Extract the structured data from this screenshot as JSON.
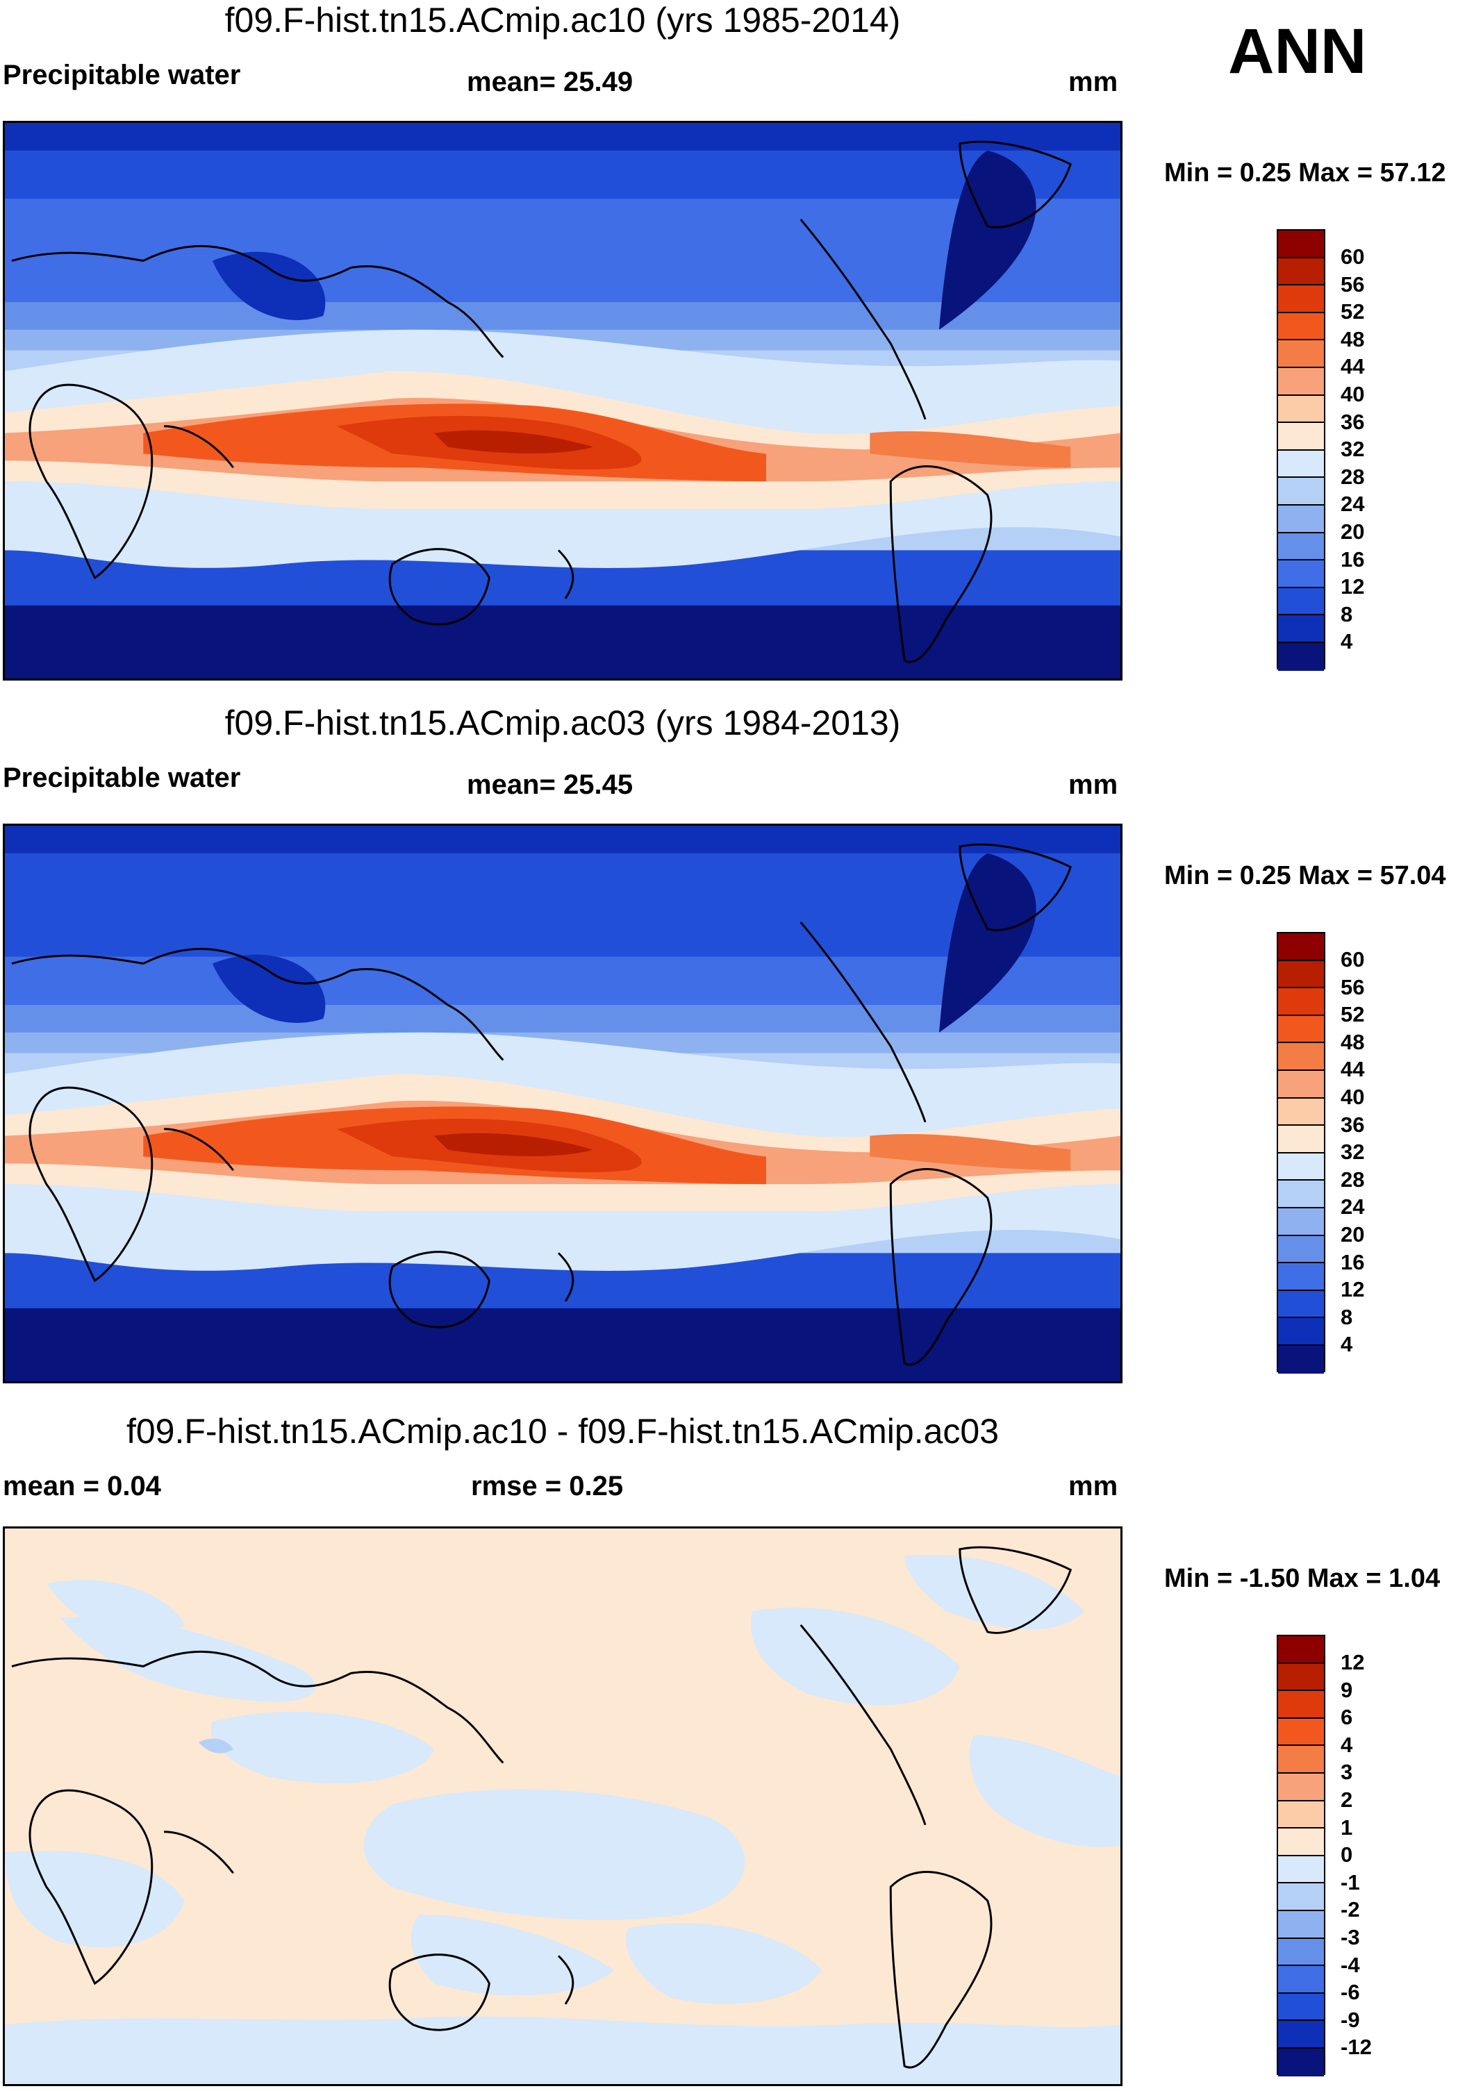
{
  "season": "ANN",
  "panels": [
    {
      "id": "ac10",
      "title": "f09.F-hist.tn15.ACmip.ac10 (yrs 1985-2014)",
      "left_label": "Precipitable water",
      "center_label": "mean=  25.49",
      "units": "mm",
      "minmax": "Min =   0.25 Max =  57.12",
      "colorbar_levels": [
        "60",
        "56",
        "52",
        "48",
        "44",
        "40",
        "36",
        "32",
        "28",
        "24",
        "20",
        "16",
        "12",
        "8",
        "4"
      ],
      "colorbar_colors": [
        "#8e0000",
        "#b81e00",
        "#de3a0c",
        "#f2581e",
        "#f47c45",
        "#f7a27a",
        "#fbcca7",
        "#fde8d3",
        "#d7e9fb",
        "#b4d0f6",
        "#8eb2f0",
        "#6590ea",
        "#3f6ee6",
        "#224fd8",
        "#0e2fb8",
        "#08137c"
      ]
    },
    {
      "id": "ac03",
      "title": "f09.F-hist.tn15.ACmip.ac03 (yrs 1984-2013)",
      "left_label": "Precipitable water",
      "center_label": "mean=  25.45",
      "units": "mm",
      "minmax": "Min =   0.25 Max =  57.04",
      "colorbar_levels": [
        "60",
        "56",
        "52",
        "48",
        "44",
        "40",
        "36",
        "32",
        "28",
        "24",
        "20",
        "16",
        "12",
        "8",
        "4"
      ],
      "colorbar_colors": [
        "#8e0000",
        "#b81e00",
        "#de3a0c",
        "#f2581e",
        "#f47c45",
        "#f7a27a",
        "#fbcca7",
        "#fde8d3",
        "#d7e9fb",
        "#b4d0f6",
        "#8eb2f0",
        "#6590ea",
        "#3f6ee6",
        "#224fd8",
        "#0e2fb8",
        "#08137c"
      ]
    },
    {
      "id": "diff",
      "title": "f09.F-hist.tn15.ACmip.ac10 - f09.F-hist.tn15.ACmip.ac03",
      "left_label": "mean =   0.04",
      "center_label": "rmse =   0.25",
      "units": "mm",
      "minmax": "Min =  -1.50 Max =   1.04",
      "colorbar_levels": [
        "12",
        "9",
        "6",
        "4",
        "3",
        "2",
        "1",
        "0",
        "-1",
        "-2",
        "-3",
        "-4",
        "-6",
        "-9",
        "-12"
      ],
      "colorbar_colors": [
        "#8e0000",
        "#b81e00",
        "#de3a0c",
        "#f2581e",
        "#f47c45",
        "#f7a27a",
        "#fbcca7",
        "#fde8d3",
        "#d7e9fb",
        "#b4d0f6",
        "#8eb2f0",
        "#6590ea",
        "#3f6ee6",
        "#224fd8",
        "#0e2fb8",
        "#08137c"
      ]
    }
  ]
}
